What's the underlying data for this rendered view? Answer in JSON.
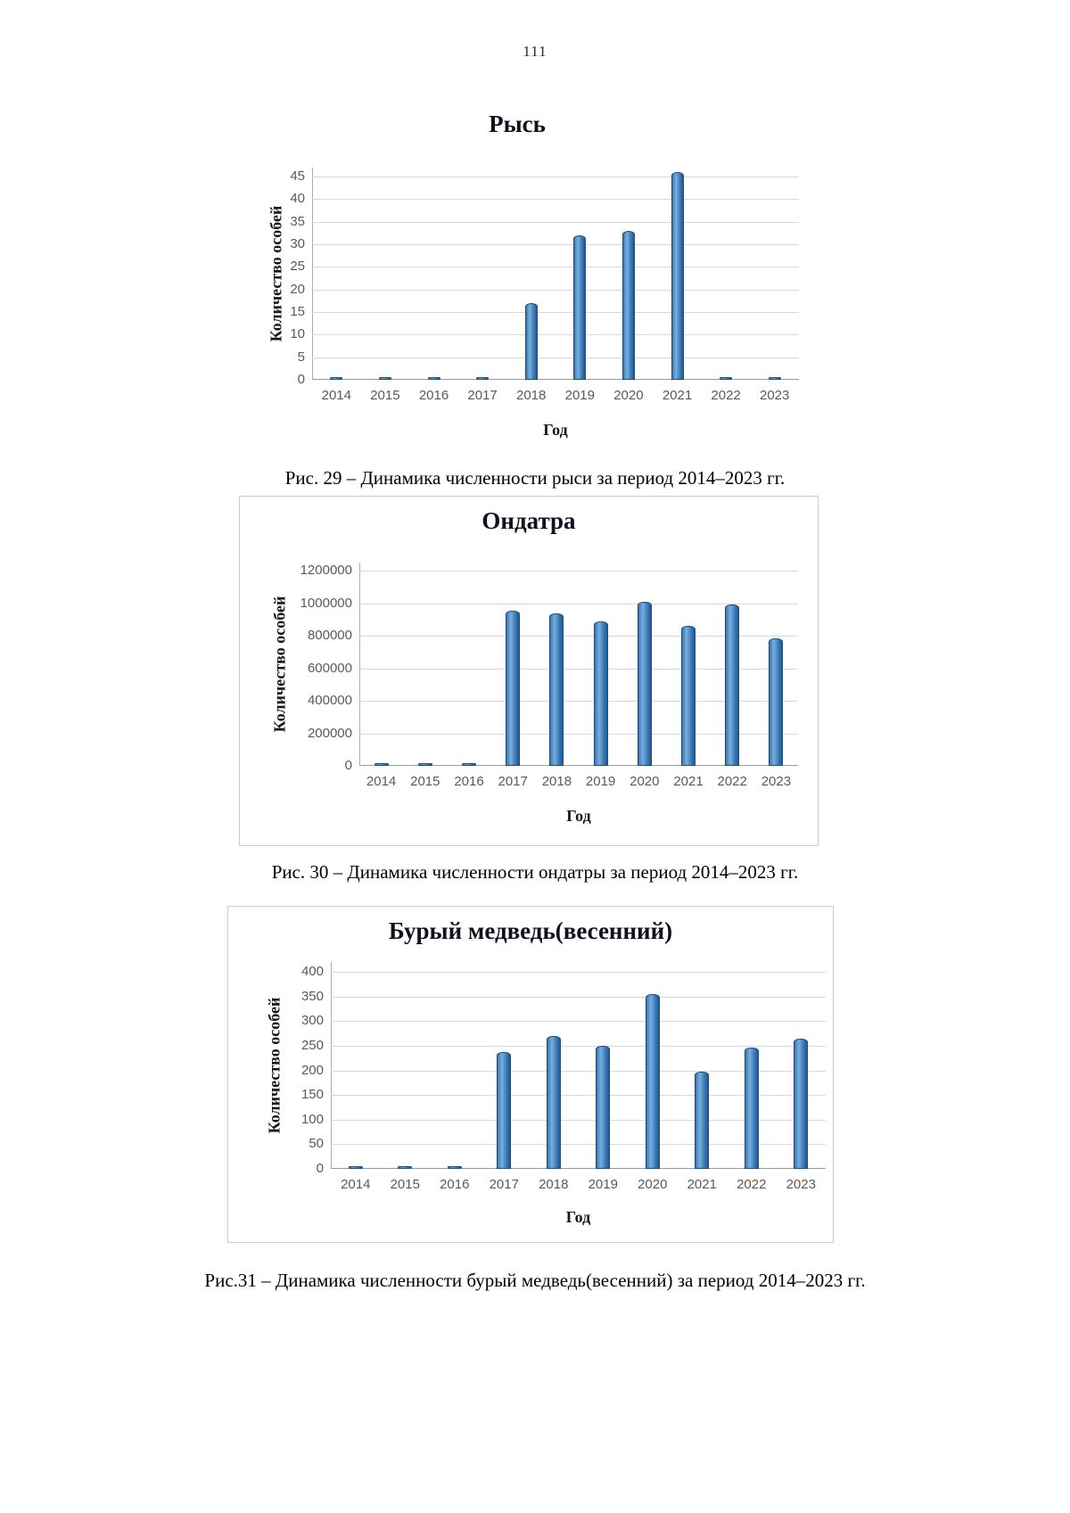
{
  "page": {
    "number": "111"
  },
  "colors": {
    "bar_light": "#7aaedd",
    "bar_mid": "#3577b4",
    "bar_dark": "#245a8d",
    "bar_edge": "#1c4e79",
    "grid": "#d9d9d9",
    "tick_text": "#595959",
    "title_text": "#101020"
  },
  "chart_data": [
    {
      "type": "bar",
      "title": "Рысь",
      "xlabel": "Год",
      "ylabel": "Количество особей",
      "categories": [
        "2014",
        "2015",
        "2016",
        "2017",
        "2018",
        "2019",
        "2020",
        "2021",
        "2022",
        "2023"
      ],
      "values": [
        0,
        0,
        0,
        0,
        17,
        32,
        33,
        46,
        0,
        0
      ],
      "yticks": [
        0,
        5,
        10,
        15,
        20,
        25,
        30,
        35,
        40,
        45
      ],
      "ylim": [
        0,
        47
      ],
      "grid": true,
      "legend": "none",
      "caption": "Рис. 29 – Динамика численности рыси за период 2014–2023 гг."
    },
    {
      "type": "bar",
      "title": "Ондатра",
      "xlabel": "Год",
      "ylabel": "Количество особей",
      "categories": [
        "2014",
        "2015",
        "2016",
        "2017",
        "2018",
        "2019",
        "2020",
        "2021",
        "2022",
        "2023"
      ],
      "values": [
        0,
        0,
        0,
        955000,
        940000,
        890000,
        1010000,
        860000,
        990000,
        785000
      ],
      "yticks": [
        0,
        200000,
        400000,
        600000,
        800000,
        1000000,
        1200000
      ],
      "ylim": [
        0,
        1250000
      ],
      "grid": true,
      "legend": "none",
      "caption": "Рис. 30 – Динамика численности ондатры за период 2014–2023 гг."
    },
    {
      "type": "bar",
      "title": "Бурый медведь(весенний)",
      "xlabel": "Год",
      "ylabel": "Количество особей",
      "categories": [
        "2014",
        "2015",
        "2016",
        "2017",
        "2018",
        "2019",
        "2020",
        "2021",
        "2022",
        "2023"
      ],
      "values": [
        0,
        0,
        0,
        238,
        270,
        250,
        355,
        197,
        247,
        264
      ],
      "yticks": [
        0,
        50,
        100,
        150,
        200,
        250,
        300,
        350,
        400
      ],
      "ylim": [
        0,
        420
      ],
      "grid": true,
      "legend": "none",
      "caption": "Рис.31 – Динамика численности бурый медведь(весенний) за период 2014–2023 гг."
    }
  ]
}
